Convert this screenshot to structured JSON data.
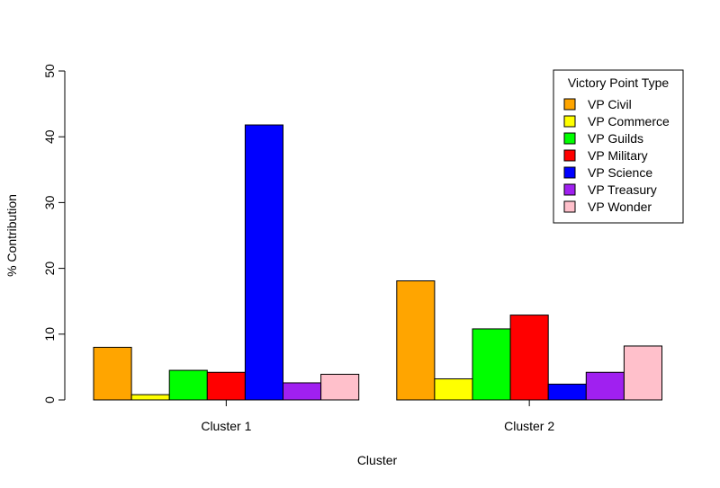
{
  "chart_data": {
    "type": "bar",
    "categories": [
      "Cluster 1",
      "Cluster 2"
    ],
    "series": [
      {
        "name": "VP Civil",
        "color": "#FFA500",
        "values": [
          8.0,
          18.1
        ]
      },
      {
        "name": "VP Commerce",
        "color": "#FFFF00",
        "values": [
          0.8,
          3.2
        ]
      },
      {
        "name": "VP Guilds",
        "color": "#00FF00",
        "values": [
          4.5,
          10.8
        ]
      },
      {
        "name": "VP Military",
        "color": "#FF0000",
        "values": [
          4.2,
          12.9
        ]
      },
      {
        "name": "VP Science",
        "color": "#0000FF",
        "values": [
          41.8,
          2.4
        ]
      },
      {
        "name": "VP Treasury",
        "color": "#A020F0",
        "values": [
          2.6,
          4.2
        ]
      },
      {
        "name": "VP Wonder",
        "color": "#FFC0CB",
        "values": [
          3.9,
          8.2
        ]
      }
    ],
    "xlabel": "Cluster",
    "ylabel": "% Contribution",
    "ylim": [
      0,
      50
    ],
    "yticks": [
      0,
      10,
      20,
      30,
      40,
      50
    ],
    "legend_title": "Victory Point Type",
    "legend_position": "top-right",
    "grid": false
  }
}
